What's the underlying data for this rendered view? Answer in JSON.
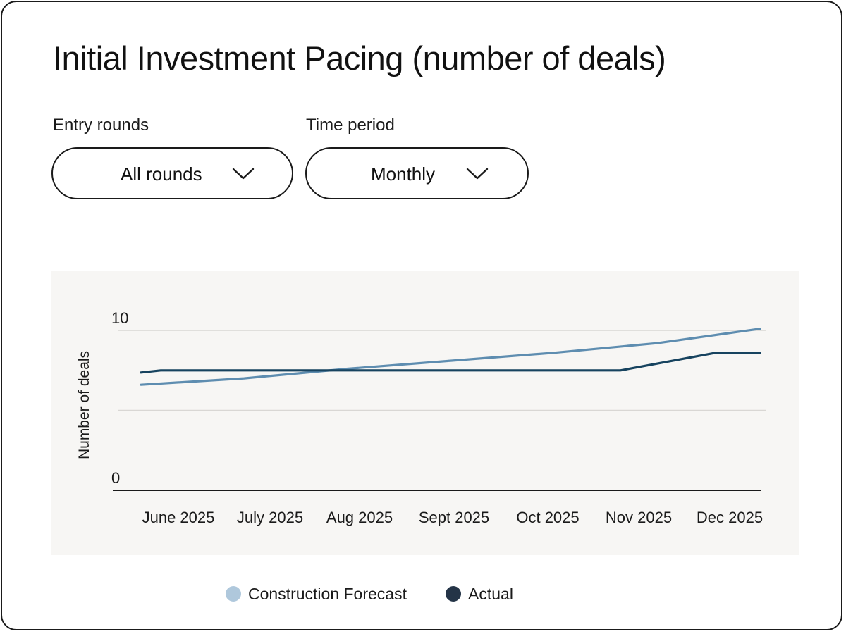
{
  "header": {
    "title": "Initial Investment Pacing (number of deals)"
  },
  "filters": {
    "entry_rounds": {
      "label": "Entry rounds",
      "value": "All rounds"
    },
    "time_period": {
      "label": "Time period",
      "value": "Monthly"
    }
  },
  "colors": {
    "forecast_line": "#5e8db0",
    "forecast_legend": "#afc8dc",
    "actual_line": "#17435f",
    "actual_legend": "#243447",
    "gridline": "#d9d7d4",
    "axis": "#1a1a1a"
  },
  "chart_data": {
    "type": "line",
    "title": "Initial Investment Pacing (number of deals)",
    "xlabel": "",
    "ylabel": "Number of deals",
    "categories": [
      "June 2025",
      "July 2025",
      "Aug 2025",
      "Sept 2025",
      "Oct 2025",
      "Nov 2025",
      "Dec 2025"
    ],
    "y_tick_labels": [
      "0",
      "10"
    ],
    "ylim": [
      0,
      10
    ],
    "grid": true,
    "legend_position": "bottom",
    "series": [
      {
        "name": "Construction Forecast",
        "points": [
          {
            "x": 0,
            "y": 6.6
          },
          {
            "x": 1,
            "y": 7.0
          },
          {
            "x": 2,
            "y": 7.6
          },
          {
            "x": 3,
            "y": 8.1
          },
          {
            "x": 4,
            "y": 8.6
          },
          {
            "x": 5,
            "y": 9.2
          },
          {
            "x": 6,
            "y": 10.1
          }
        ]
      },
      {
        "name": "Actual",
        "points": [
          {
            "x": 0,
            "y": 7.5
          },
          {
            "x": 1,
            "y": 7.5
          },
          {
            "x": 2,
            "y": 7.5
          },
          {
            "x": 3,
            "y": 7.5
          },
          {
            "x": 4,
            "y": 7.5
          },
          {
            "x": 5,
            "y": 7.5
          },
          {
            "x": 6,
            "y": 8.6
          }
        ]
      }
    ]
  },
  "legend": [
    {
      "label": "Construction Forecast"
    },
    {
      "label": "Actual"
    }
  ]
}
